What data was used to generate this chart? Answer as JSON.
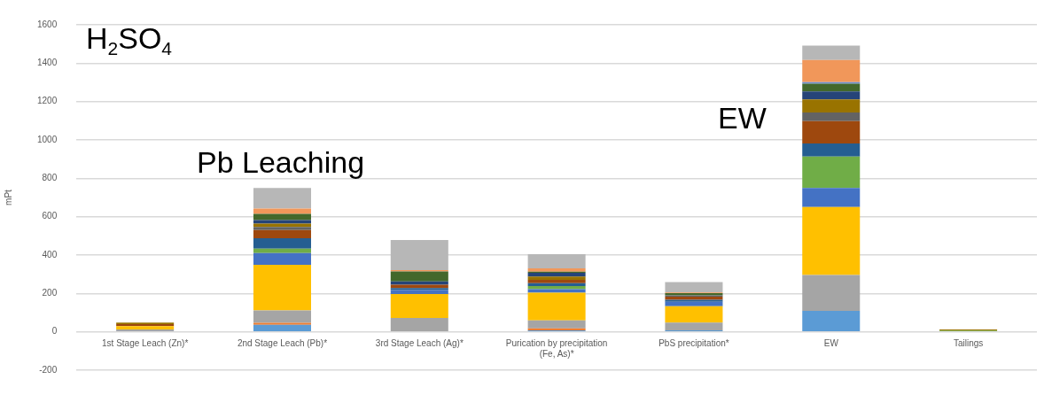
{
  "chart_data": {
    "type": "bar",
    "stacked": true,
    "ylabel": "mPt",
    "categories": [
      "1st Stage Leach (Zn)*",
      "2nd Stage Leach (Pb)*",
      "3rd Stage Leach (Ag)*",
      "Purication by precipitation (Fe, As)*",
      "PbS precipitation*",
      "EW",
      "Tailings"
    ],
    "series": [
      {
        "color": "#5b9bd5",
        "values": [
          0,
          37,
          0,
          8,
          8,
          109,
          0
        ]
      },
      {
        "color": "#ed7d31",
        "values": [
          0,
          10,
          0,
          10,
          0,
          0,
          0
        ]
      },
      {
        "color": "#a5a5a5",
        "values": [
          12,
          64,
          72,
          42,
          40,
          187,
          0
        ]
      },
      {
        "color": "#ffc000",
        "values": [
          18,
          238,
          125,
          144,
          85,
          354,
          0
        ]
      },
      {
        "color": "#4472c4",
        "values": [
          0,
          61,
          21,
          18,
          24,
          100,
          0
        ]
      },
      {
        "color": "#70ad47",
        "values": [
          0,
          24,
          0,
          17,
          0,
          164,
          6
        ]
      },
      {
        "color": "#255e91",
        "values": [
          0,
          54,
          10,
          14,
          10,
          68,
          0
        ]
      },
      {
        "color": "#9e480e",
        "values": [
          10,
          42,
          17,
          18,
          16,
          116,
          0
        ]
      },
      {
        "color": "#636363",
        "values": [
          0,
          17,
          0,
          0,
          7,
          45,
          0
        ]
      },
      {
        "color": "#997300",
        "values": [
          8,
          17,
          0,
          17,
          0,
          68,
          6
        ]
      },
      {
        "color": "#264478",
        "values": [
          0,
          18,
          18,
          20,
          0,
          42,
          0
        ]
      },
      {
        "color": "#43682b",
        "values": [
          0,
          33,
          52,
          6,
          11,
          40,
          0
        ]
      },
      {
        "color": "#698ed0",
        "values": [
          0,
          0,
          0,
          0,
          0,
          8,
          0
        ]
      },
      {
        "color": "#f1975a",
        "values": [
          0,
          27,
          7,
          17,
          4,
          115,
          0
        ]
      },
      {
        "color": "#b7b7b7",
        "values": [
          0,
          108,
          156,
          74,
          54,
          75,
          0
        ]
      }
    ],
    "ylim": [
      -200,
      1600
    ],
    "yticks": [
      -200,
      0,
      200,
      400,
      600,
      800,
      1000,
      1200,
      1400,
      1600
    ],
    "grid": "y",
    "legend": false,
    "annotations": [
      "H$_{2}$SO$_{4}$",
      "Pb Leaching",
      "EW"
    ]
  }
}
